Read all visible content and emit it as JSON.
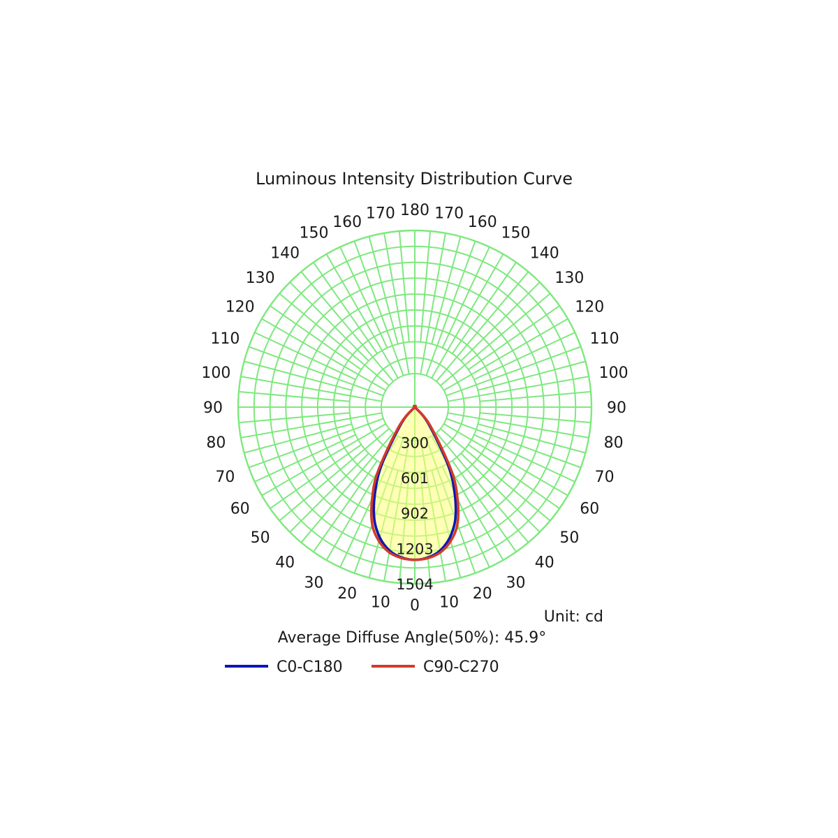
{
  "chart_data": {
    "type": "polar",
    "title": "Luminous Intensity Distribution Curve",
    "unit_label": "Unit: cd",
    "summary_label": "Average Diffuse Angle(50%): 45.9°",
    "angle_tick_labels": [
      {
        "angle": 0,
        "label": "0"
      },
      {
        "angle": 10,
        "label": "10"
      },
      {
        "angle": -10,
        "label": "10"
      },
      {
        "angle": 20,
        "label": "20"
      },
      {
        "angle": -20,
        "label": "20"
      },
      {
        "angle": 30,
        "label": "30"
      },
      {
        "angle": -30,
        "label": "30"
      },
      {
        "angle": 40,
        "label": "40"
      },
      {
        "angle": -40,
        "label": "40"
      },
      {
        "angle": 50,
        "label": "50"
      },
      {
        "angle": -50,
        "label": "50"
      },
      {
        "angle": 60,
        "label": "60"
      },
      {
        "angle": -60,
        "label": "60"
      },
      {
        "angle": 70,
        "label": "70"
      },
      {
        "angle": -70,
        "label": "70"
      },
      {
        "angle": 80,
        "label": "80"
      },
      {
        "angle": -80,
        "label": "80"
      },
      {
        "angle": 90,
        "label": "90"
      },
      {
        "angle": -90,
        "label": "90"
      },
      {
        "angle": 100,
        "label": "100"
      },
      {
        "angle": -100,
        "label": "100"
      },
      {
        "angle": 110,
        "label": "110"
      },
      {
        "angle": -110,
        "label": "110"
      },
      {
        "angle": 120,
        "label": "120"
      },
      {
        "angle": -120,
        "label": "120"
      },
      {
        "angle": 130,
        "label": "130"
      },
      {
        "angle": -130,
        "label": "130"
      },
      {
        "angle": 140,
        "label": "140"
      },
      {
        "angle": -140,
        "label": "140"
      },
      {
        "angle": 150,
        "label": "150"
      },
      {
        "angle": -150,
        "label": "150"
      },
      {
        "angle": 160,
        "label": "160"
      },
      {
        "angle": -160,
        "label": "160"
      },
      {
        "angle": 170,
        "label": "170"
      },
      {
        "angle": -170,
        "label": "170"
      },
      {
        "angle": 180,
        "label": "180"
      }
    ],
    "radial_ticks": [
      300,
      601,
      902,
      1203,
      1504
    ],
    "radial_tick_labels": [
      "300",
      "601",
      "902",
      "1203",
      "1504"
    ],
    "rlim": [
      0,
      1504
    ],
    "grid": true,
    "grid_color": "#7ee87e",
    "legend_position": "bottom",
    "series": [
      {
        "name": "C0-C180",
        "color": "#0a17b8",
        "angles": [
          -90,
          -60,
          -50,
          -40,
          -30,
          -25,
          -20,
          -15,
          -10,
          -5,
          0,
          5,
          10,
          15,
          20,
          25,
          30,
          40,
          50,
          60,
          90
        ],
        "values": [
          0,
          0,
          3,
          170,
          560,
          800,
          1010,
          1150,
          1240,
          1285,
          1300,
          1285,
          1240,
          1150,
          1010,
          800,
          560,
          170,
          3,
          0,
          0
        ]
      },
      {
        "name": "C90-C270",
        "color": "#d23a2a",
        "angles": [
          -90,
          -60,
          -50,
          -40,
          -30,
          -25,
          -20,
          -15,
          -10,
          -5,
          0,
          5,
          10,
          15,
          20,
          25,
          30,
          40,
          50,
          60,
          90
        ],
        "values": [
          0,
          0,
          3,
          200,
          620,
          860,
          1060,
          1180,
          1255,
          1290,
          1300,
          1290,
          1255,
          1180,
          1060,
          860,
          620,
          200,
          3,
          0,
          0
        ]
      }
    ]
  }
}
